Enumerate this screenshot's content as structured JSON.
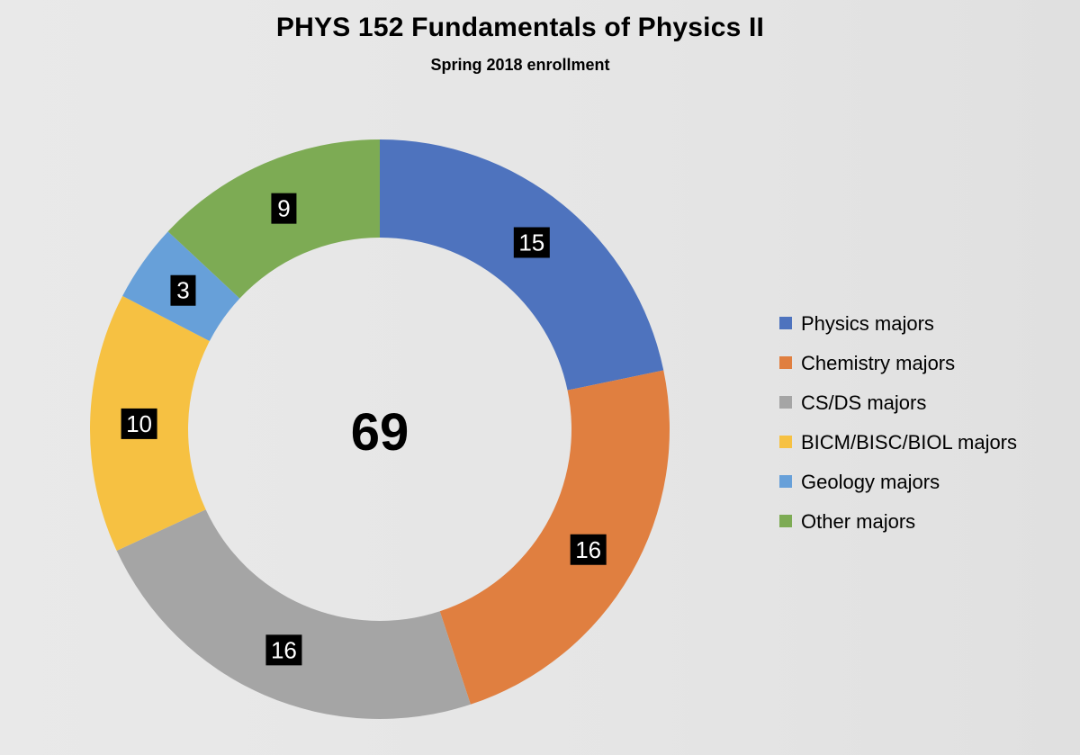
{
  "chart_data": {
    "type": "pie",
    "style": "donut",
    "title": "PHYS 152 Fundamentals of Physics II",
    "subtitle": "Spring 2018 enrollment",
    "center_label": "69",
    "start_angle_deg": 0,
    "direction": "clockwise",
    "legend_position": "right",
    "slices": [
      {
        "name": "Physics majors",
        "value": 15,
        "label": "15",
        "color": "#4e73be"
      },
      {
        "name": "Chemistry majors",
        "value": 16,
        "label": "16",
        "color": "#e07f40"
      },
      {
        "name": "CS/DS majors",
        "value": 16,
        "label": "16",
        "color": "#a5a5a5"
      },
      {
        "name": "BICM/BISC/BIOL majors",
        "value": 10,
        "label": "10",
        "color": "#f6c142"
      },
      {
        "name": "Geology majors",
        "value": 3,
        "label": "3",
        "color": "#67a0d9"
      },
      {
        "name": "Other majors",
        "value": 9,
        "label": "9",
        "color": "#7dab54"
      }
    ]
  }
}
